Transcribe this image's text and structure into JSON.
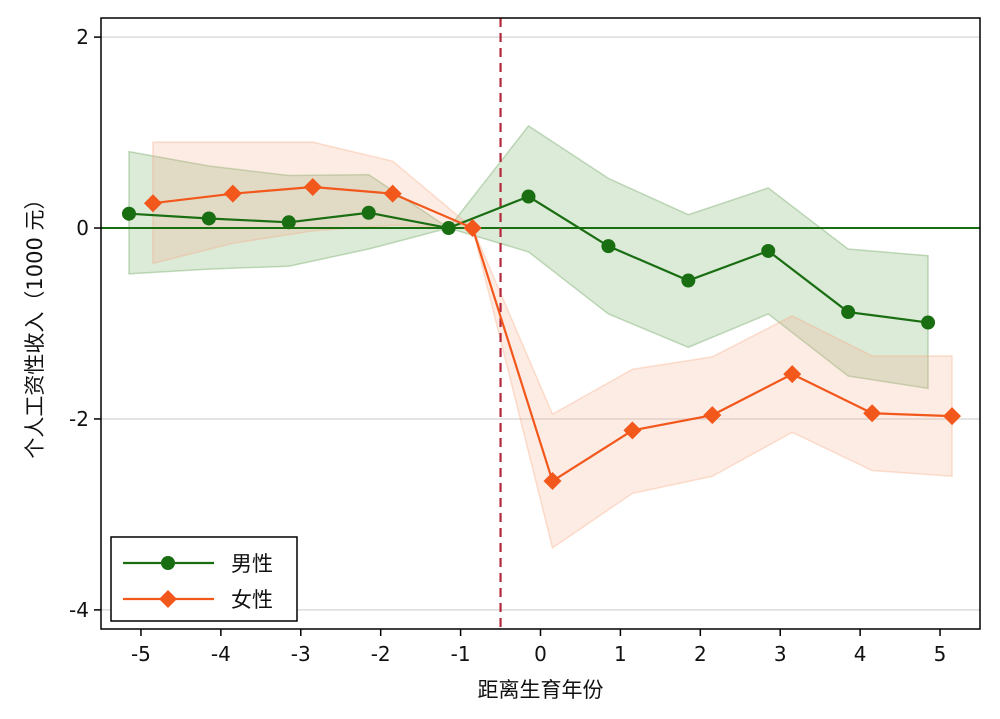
{
  "chart_data": {
    "type": "line",
    "title": "",
    "xlabel": "距离生育年份",
    "ylabel": "个人工资性收入（1000 元）",
    "xlim": [
      -5.5,
      5.5
    ],
    "ylim": [
      -4.2,
      2.2
    ],
    "xticks": [
      -5,
      -4,
      -3,
      -2,
      -1,
      0,
      1,
      2,
      3,
      4,
      5
    ],
    "xtick_labels": [
      "-5",
      "-4",
      "-3",
      "-2",
      "-1",
      "0",
      "1",
      "2",
      "3",
      "4",
      "5"
    ],
    "yticks": [
      -4,
      -2,
      0,
      2
    ],
    "ytick_labels": [
      "-4",
      "-2",
      "0",
      "2"
    ],
    "grid": "horizontal",
    "event_line_x": -0.5,
    "zero_line_y": 0,
    "legend_position": "bottom-left",
    "series": [
      {
        "name": "男性",
        "color": "#1a6e12",
        "band_color": "#5e9e4f",
        "marker": "circle",
        "x": [
          -5.15,
          -4.15,
          -3.15,
          -2.15,
          -1.15,
          -0.15,
          0.85,
          1.85,
          2.85,
          3.85,
          4.85
        ],
        "values": [
          0.15,
          0.1,
          0.06,
          0.16,
          0.0,
          0.33,
          -0.19,
          -0.55,
          -0.24,
          -0.88,
          -0.99
        ],
        "ci_lower": [
          -0.48,
          -0.43,
          -0.4,
          -0.22,
          0.0,
          -0.25,
          -0.9,
          -1.25,
          -0.9,
          -1.55,
          -1.68
        ],
        "ci_upper": [
          0.8,
          0.65,
          0.55,
          0.56,
          0.0,
          1.07,
          0.52,
          0.14,
          0.42,
          -0.22,
          -0.29
        ]
      },
      {
        "name": "女性",
        "color": "#f2571b",
        "band_color": "#f7a882",
        "marker": "diamond",
        "x": [
          -4.85,
          -3.85,
          -2.85,
          -1.85,
          -0.85,
          0.15,
          1.15,
          2.15,
          3.15,
          4.15,
          5.15
        ],
        "values": [
          0.26,
          0.36,
          0.43,
          0.36,
          0.0,
          -2.65,
          -2.12,
          -1.96,
          -1.53,
          -1.94,
          -1.97
        ],
        "ci_lower": [
          -0.37,
          -0.16,
          -0.03,
          0.03,
          0.0,
          -3.35,
          -2.78,
          -2.6,
          -2.14,
          -2.54,
          -2.6
        ],
        "ci_upper": [
          0.9,
          0.9,
          0.9,
          0.7,
          0.0,
          -1.95,
          -1.48,
          -1.35,
          -0.92,
          -1.34,
          -1.34
        ]
      }
    ]
  }
}
